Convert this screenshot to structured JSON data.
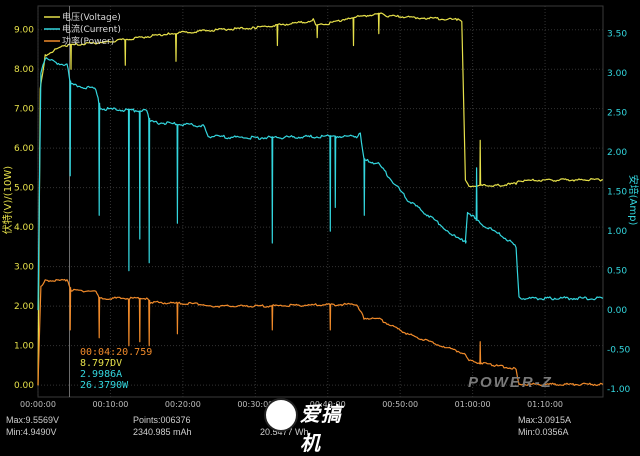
{
  "chart_data": {
    "type": "line",
    "x_unit": "time",
    "x_ticks": [
      "00:00:00",
      "00:10:00",
      "00:20:00",
      "00:30:00",
      "00:40:00",
      "00:50:00",
      "01:00:00",
      "01:10:00"
    ],
    "x_range": [
      0,
      78
    ],
    "ylabel_left": "伏特(V)/(10W)",
    "ylabel_right": "安培(Amp)",
    "ylim_left": [
      -0.3,
      9.6
    ],
    "ylim_right": [
      -1.1,
      3.85
    ],
    "yticks_left": [
      "9.00",
      "8.00",
      "7.00",
      "6.00",
      "5.00",
      "4.00",
      "3.00",
      "2.00",
      "1.00",
      "0.00"
    ],
    "yticks_right": [
      "3.50",
      "3.00",
      "2.50",
      "2.00",
      "1.50",
      "1.00",
      "0.50",
      "0.00",
      "-0.50",
      "-1.00"
    ],
    "grid": true,
    "legend_position": "top-left",
    "series": [
      {
        "name": "电压(Voltage)",
        "color": "#e6e04a",
        "axis": "left",
        "points": [
          [
            0,
            0
          ],
          [
            0.3,
            7.5
          ],
          [
            1,
            8.35
          ],
          [
            3,
            8.55
          ],
          [
            4,
            8.6
          ],
          [
            10,
            8.7
          ],
          [
            18,
            8.9
          ],
          [
            25,
            9.0
          ],
          [
            30,
            9.05
          ],
          [
            37,
            9.2
          ],
          [
            38,
            9.25
          ],
          [
            38.5,
            9.1
          ],
          [
            40,
            9.15
          ],
          [
            43,
            9.3
          ],
          [
            47,
            9.4
          ],
          [
            47.5,
            9.4
          ],
          [
            48,
            9.35
          ],
          [
            53,
            9.3
          ],
          [
            58,
            9.25
          ],
          [
            58.5,
            9.2
          ],
          [
            59,
            5.2
          ],
          [
            59.5,
            5.05
          ],
          [
            63,
            5.05
          ],
          [
            66,
            5.1
          ],
          [
            66.5,
            5.18
          ],
          [
            75,
            5.2
          ],
          [
            78,
            5.2
          ]
        ],
        "dips": [
          [
            4.5,
            8.0
          ],
          [
            12,
            8.1
          ],
          [
            19,
            8.2
          ],
          [
            33,
            8.6
          ],
          [
            38.5,
            8.8
          ],
          [
            43.5,
            8.6
          ],
          [
            47,
            8.9
          ],
          [
            61,
            6.2
          ]
        ]
      },
      {
        "name": "电流(Current)",
        "color": "#33d6de",
        "axis": "right",
        "points": [
          [
            0,
            0
          ],
          [
            0.4,
            3.0
          ],
          [
            1,
            3.18
          ],
          [
            3,
            3.12
          ],
          [
            4,
            3.1
          ],
          [
            4.6,
            2.85
          ],
          [
            8,
            2.8
          ],
          [
            8.6,
            2.55
          ],
          [
            15,
            2.52
          ],
          [
            15.5,
            2.38
          ],
          [
            23,
            2.33
          ],
          [
            23.5,
            2.2
          ],
          [
            30,
            2.18
          ],
          [
            40,
            2.2
          ],
          [
            44,
            2.2
          ],
          [
            44.5,
            2.25
          ],
          [
            45,
            1.9
          ],
          [
            47,
            1.85
          ],
          [
            51,
            1.4
          ],
          [
            56,
            1.05
          ],
          [
            58,
            0.9
          ],
          [
            59,
            0.88
          ],
          [
            59.3,
            1.25
          ],
          [
            61,
            1.1
          ],
          [
            63,
            1.0
          ],
          [
            65,
            0.88
          ],
          [
            66,
            0.8
          ],
          [
            66.4,
            0.15
          ],
          [
            70,
            0.15
          ],
          [
            78,
            0.15
          ]
        ],
        "dips": [
          [
            4.4,
            1.7
          ],
          [
            8.4,
            1.2
          ],
          [
            12.5,
            0.5
          ],
          [
            14,
            0.9
          ],
          [
            15.3,
            0.6
          ],
          [
            19.2,
            1.1
          ],
          [
            32.3,
            0.85
          ],
          [
            40.3,
            1.0
          ],
          [
            41,
            1.3
          ],
          [
            45,
            1.2
          ],
          [
            59,
            0.85
          ],
          [
            60.5,
            1.8
          ]
        ]
      },
      {
        "name": "功率(Power)",
        "color": "#f08a2a",
        "axis": "left",
        "points": [
          [
            0,
            0
          ],
          [
            0.4,
            2.5
          ],
          [
            1,
            2.65
          ],
          [
            4,
            2.65
          ],
          [
            4.6,
            2.4
          ],
          [
            8,
            2.38
          ],
          [
            8.6,
            2.2
          ],
          [
            15,
            2.2
          ],
          [
            15.5,
            2.1
          ],
          [
            23,
            2.05
          ],
          [
            23.5,
            2.0
          ],
          [
            30,
            2.0
          ],
          [
            44,
            2.05
          ],
          [
            45,
            1.7
          ],
          [
            47,
            1.68
          ],
          [
            51,
            1.3
          ],
          [
            56,
            0.98
          ],
          [
            59,
            0.8
          ],
          [
            59.5,
            0.62
          ],
          [
            63,
            0.5
          ],
          [
            66,
            0.42
          ],
          [
            66.4,
            0.02
          ],
          [
            78,
            0.02
          ]
        ],
        "dips": [
          [
            4.4,
            1.4
          ],
          [
            8.4,
            1.2
          ],
          [
            12.5,
            1.0
          ],
          [
            14,
            1.1
          ],
          [
            15.3,
            1.0
          ],
          [
            19.2,
            1.3
          ],
          [
            32.3,
            1.4
          ],
          [
            40.3,
            1.4
          ],
          [
            61,
            1.1
          ]
        ]
      }
    ],
    "cursor": {
      "time": "00:04:20.759",
      "voltage": "8.797DV",
      "current": "2.9986A",
      "power": "26.3790W",
      "colors": [
        "#f08a2a",
        "#e6e04a",
        "#33d6de",
        "#33d6de"
      ]
    }
  },
  "status": {
    "max_v": "Max:9.5569V",
    "min_v": "Min:4.9490V",
    "points": "Points:006376",
    "mah": "2340.985 mAh",
    "wh": "20.5477 Wh",
    "max_a": "Max:3.0915A",
    "min_a": "Min:0.0356A"
  },
  "brand": "POWER-Z",
  "logo": "爱搞机"
}
